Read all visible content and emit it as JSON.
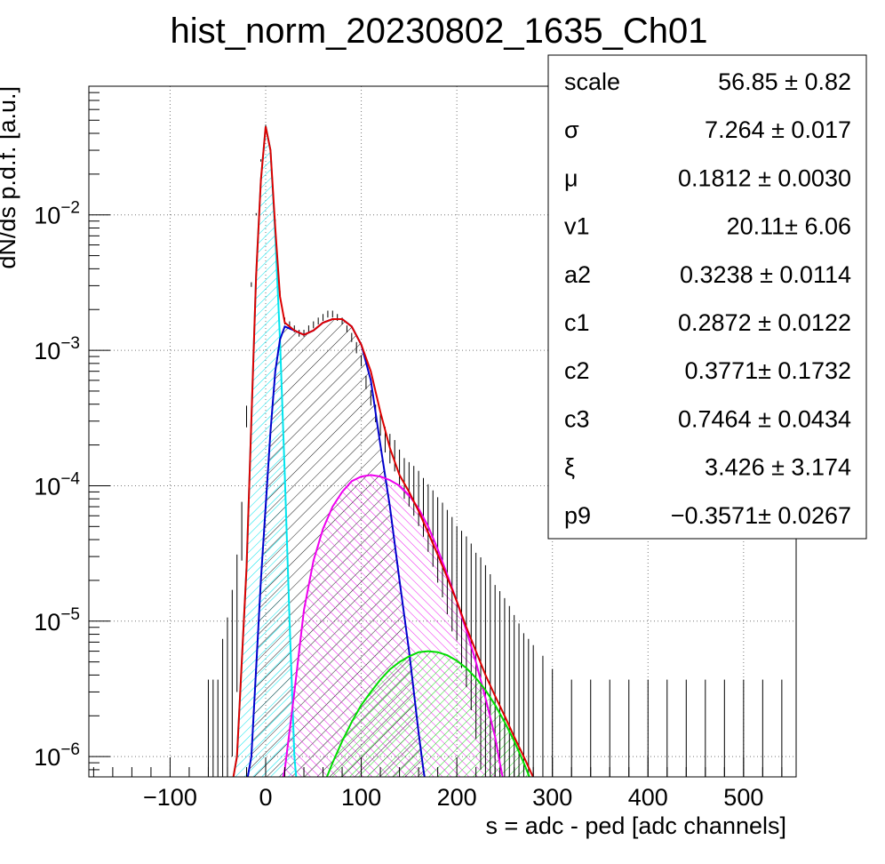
{
  "chart_data": {
    "type": "line",
    "title": "hist_norm_20230802_1635_Ch01",
    "xlabel": "s = adc - ped [adc channels]",
    "ylabel": "dN/ds p.d.f. [a.u.]",
    "xlim": [
      -185,
      555
    ],
    "ylim_log10": [
      -6.15,
      -1.05
    ],
    "yscale": "log",
    "grid": true,
    "x_ticks": [
      -100,
      0,
      100,
      200,
      300,
      400,
      500
    ],
    "x_tick_labels": [
      "−100",
      "0",
      "100",
      "200",
      "300",
      "400",
      "500"
    ],
    "y_ticks": [
      {
        "base": "10",
        "exp": "−2",
        "value": 0.01
      },
      {
        "base": "10",
        "exp": "−3",
        "value": 0.001
      },
      {
        "base": "10",
        "exp": "−4",
        "value": 0.0001
      },
      {
        "base": "10",
        "exp": "−5",
        "value": 1e-05
      },
      {
        "base": "10",
        "exp": "−6",
        "value": 1e-06
      }
    ],
    "series": [
      {
        "color": "#00e5ee",
        "fill": "hatch-cyan",
        "x": [
          -40,
          -30,
          -20,
          -10,
          -5,
          0,
          5,
          10,
          15,
          20,
          25,
          30,
          35
        ],
        "y": [
          4e-07,
          1e-06,
          2.5e-05,
          0.0035,
          0.018,
          0.045,
          0.03,
          0.007,
          0.0012,
          0.00012,
          1e-05,
          1e-06,
          4e-07
        ]
      },
      {
        "color": "#0000cc",
        "fill": "hatch-black",
        "x": [
          -25,
          -15,
          -5,
          5,
          10,
          15,
          20,
          30,
          40,
          50,
          60,
          70,
          80,
          90,
          100,
          110,
          120,
          130,
          140,
          150,
          160,
          165,
          172
        ],
        "y": [
          4e-07,
          1e-06,
          2e-05,
          0.00025,
          0.0007,
          0.0012,
          0.0015,
          0.0014,
          0.0013,
          0.0014,
          0.0016,
          0.0017,
          0.0017,
          0.0015,
          0.0011,
          0.0006,
          0.0002,
          7e-05,
          2e-05,
          6e-06,
          1.5e-06,
          8e-07,
          4e-07
        ]
      },
      {
        "color": "#ee00ee",
        "fill": "hatch-magenta",
        "x": [
          10,
          20,
          30,
          40,
          50,
          60,
          70,
          80,
          90,
          100,
          110,
          120,
          130,
          140,
          150,
          160,
          170,
          180,
          190,
          200,
          210,
          220,
          230,
          240,
          245,
          250,
          255
        ],
        "y": [
          4e-07,
          8e-07,
          3e-06,
          1.2e-05,
          2.8e-05,
          4.8e-05,
          7e-05,
          9e-05,
          0.000108,
          0.000117,
          0.00012,
          0.000117,
          0.00011,
          0.0001,
          8.5e-05,
          6.8e-05,
          5e-05,
          3.4e-05,
          2.2e-05,
          1.4e-05,
          8.5e-06,
          5e-06,
          2.7e-06,
          1.4e-06,
          9e-07,
          6e-07,
          4e-07
        ]
      },
      {
        "color": "#00dd00",
        "fill": "hatch-green",
        "x": [
          55,
          60,
          70,
          80,
          90,
          100,
          110,
          120,
          130,
          140,
          150,
          160,
          170,
          180,
          190,
          200,
          210,
          220,
          230,
          240,
          250,
          260,
          270,
          280,
          290
        ],
        "y": [
          4e-07,
          6e-07,
          9e-07,
          1.3e-06,
          1.8e-06,
          2.4e-06,
          3e-06,
          3.7e-06,
          4.4e-06,
          5e-06,
          5.5e-06,
          5.9e-06,
          6e-06,
          5.9e-06,
          5.6e-06,
          5.1e-06,
          4.5e-06,
          3.8e-06,
          3.1e-06,
          2.4e-06,
          1.8e-06,
          1.3e-06,
          9e-07,
          6e-07,
          4e-07
        ]
      },
      {
        "color": "#dd0000",
        "fill": "none",
        "x": [
          -40,
          -30,
          -20,
          -10,
          -5,
          0,
          5,
          10,
          15,
          20,
          30,
          40,
          50,
          60,
          70,
          80,
          90,
          100,
          110,
          120,
          130,
          140,
          150,
          160,
          170,
          180,
          190,
          200,
          210,
          220,
          230,
          240,
          250,
          260,
          270,
          280,
          290
        ],
        "y": [
          4e-07,
          1e-06,
          2.5e-05,
          0.0035,
          0.018,
          0.045,
          0.03,
          0.008,
          0.0025,
          0.0016,
          0.0014,
          0.0013,
          0.0014,
          0.0016,
          0.0017,
          0.0017,
          0.0015,
          0.0011,
          0.0007,
          0.00035,
          0.00019,
          0.00012,
          9e-05,
          6.5e-05,
          4.5e-05,
          3.1e-05,
          2.1e-05,
          1.4e-05,
          9e-06,
          6e-06,
          4e-06,
          2.8e-06,
          2e-06,
          1.4e-06,
          1e-06,
          7e-07,
          4e-07
        ]
      }
    ],
    "data_errors": {
      "color": "#000000",
      "x": [
        -60,
        -55,
        -50,
        -45,
        -40,
        -35,
        -30,
        -25,
        -20,
        -15,
        -10,
        -5,
        0,
        5,
        10,
        15,
        20,
        25,
        30,
        35,
        40,
        45,
        50,
        55,
        60,
        65,
        70,
        75,
        80,
        85,
        90,
        95,
        100,
        105,
        110,
        115,
        120,
        125,
        130,
        135,
        140,
        145,
        150,
        155,
        160,
        165,
        170,
        175,
        180,
        185,
        190,
        195,
        200,
        205,
        210,
        215,
        220,
        225,
        230,
        235,
        240,
        245,
        250,
        255,
        260,
        265,
        270,
        275,
        280,
        290,
        300,
        320,
        340,
        360,
        380,
        400,
        420,
        440,
        460,
        480,
        500,
        520,
        540
      ],
      "y": [
        1e-06,
        1e-06,
        1e-06,
        2e-06,
        3e-06,
        5e-06,
        1e-05,
        4e-05,
        0.0003,
        0.003,
        0.01,
        0.025,
        0.045,
        0.03,
        0.009,
        0.0026,
        0.0016,
        0.0015,
        0.0014,
        0.0013,
        0.0013,
        0.0014,
        0.0015,
        0.0016,
        0.0017,
        0.0018,
        0.0018,
        0.0017,
        0.0016,
        0.0014,
        0.0012,
        0.001,
        0.0008,
        0.00055,
        0.00042,
        0.00032,
        0.00026,
        0.0002,
        0.00017,
        0.00015,
        0.00012,
        0.0001,
        9e-05,
        8e-05,
        7e-05,
        6e-05,
        5e-05,
        4.2e-05,
        3.5e-05,
        3e-05,
        2.5e-05,
        2.1e-05,
        1.8e-05,
        1.5e-05,
        1.3e-05,
        1.1e-05,
        9e-06,
        8e-06,
        7e-06,
        6e-06,
        5e-06,
        4.5e-06,
        4e-06,
        3.5e-06,
        3e-06,
        2.6e-06,
        2.2e-06,
        2e-06,
        1.8e-06,
        1.5e-06,
        1.2e-06,
        1e-06,
        1e-06,
        1e-06,
        1e-06,
        1e-06,
        1e-06,
        1e-06,
        1e-06,
        1e-06,
        1e-06,
        1e-06,
        1e-06
      ],
      "rel_err": [
        0.9,
        0.9,
        0.9,
        0.9,
        0.85,
        0.8,
        0.7,
        0.3,
        0.1,
        0.02,
        0.01,
        0.01,
        0.01,
        0.01,
        0.01,
        0.02,
        0.03,
        0.03,
        0.03,
        0.03,
        0.03,
        0.03,
        0.03,
        0.03,
        0.03,
        0.03,
        0.03,
        0.03,
        0.03,
        0.03,
        0.04,
        0.05,
        0.05,
        0.06,
        0.07,
        0.08,
        0.1,
        0.12,
        0.14,
        0.15,
        0.18,
        0.2,
        0.22,
        0.25,
        0.28,
        0.3,
        0.35,
        0.4,
        0.45,
        0.5,
        0.55,
        0.6,
        0.6,
        0.7,
        0.75,
        0.8,
        0.85,
        0.9,
        0.9,
        0.9,
        0.9,
        0.9,
        0.9,
        0.9,
        0.9,
        0.9,
        0.9,
        0.9,
        0.9,
        0.9,
        0.9,
        0.9,
        0.9,
        0.9,
        0.9,
        0.9,
        0.9,
        0.9,
        0.9,
        0.9,
        0.9,
        0.9,
        0.9
      ]
    },
    "stats_box": {
      "rows": [
        {
          "name": "scale",
          "value": "56.85 ± 0.82"
        },
        {
          "name": "σ",
          "value": "7.264 ± 0.017"
        },
        {
          "name": "μ",
          "value": "0.1812 ± 0.0030"
        },
        {
          "name": "v1",
          "value": "20.11± 6.06"
        },
        {
          "name": "a2",
          "value": "0.3238 ± 0.0114"
        },
        {
          "name": "c1",
          "value": "0.2872 ± 0.0122"
        },
        {
          "name": "c2",
          "value": "0.3771± 0.1732"
        },
        {
          "name": "c3",
          "value": "0.7464 ± 0.0434"
        },
        {
          "name": "ξ",
          "value": "3.426 ± 3.174"
        },
        {
          "name": "p9",
          "value": "−0.3571± 0.0267"
        }
      ]
    }
  }
}
